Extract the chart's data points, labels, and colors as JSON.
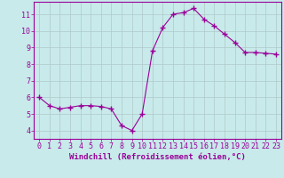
{
  "x": [
    0,
    1,
    2,
    3,
    4,
    5,
    6,
    7,
    8,
    9,
    10,
    11,
    12,
    13,
    14,
    15,
    16,
    17,
    18,
    19,
    20,
    21,
    22,
    23
  ],
  "y": [
    6.0,
    5.5,
    5.3,
    5.4,
    5.5,
    5.5,
    5.45,
    5.3,
    4.3,
    4.0,
    5.0,
    8.8,
    10.2,
    11.0,
    11.1,
    11.35,
    10.7,
    10.3,
    9.8,
    9.3,
    8.7,
    8.7,
    8.65,
    8.6
  ],
  "line_color": "#990099",
  "marker": "+",
  "marker_size": 4,
  "bg_color": "#c8eaea",
  "grid_color": "#b0c8c8",
  "xlabel": "Windchill (Refroidissement éolien,°C)",
  "ylim": [
    3.5,
    11.75
  ],
  "xlim": [
    -0.5,
    23.5
  ],
  "yticks": [
    4,
    5,
    6,
    7,
    8,
    9,
    10,
    11
  ],
  "xticks": [
    0,
    1,
    2,
    3,
    4,
    5,
    6,
    7,
    8,
    9,
    10,
    11,
    12,
    13,
    14,
    15,
    16,
    17,
    18,
    19,
    20,
    21,
    22,
    23
  ],
  "tick_color": "#990099",
  "label_fontsize": 6.5,
  "tick_fontsize": 6,
  "spine_color": "#990099",
  "line_width": 0.8,
  "marker_lw": 1.0
}
